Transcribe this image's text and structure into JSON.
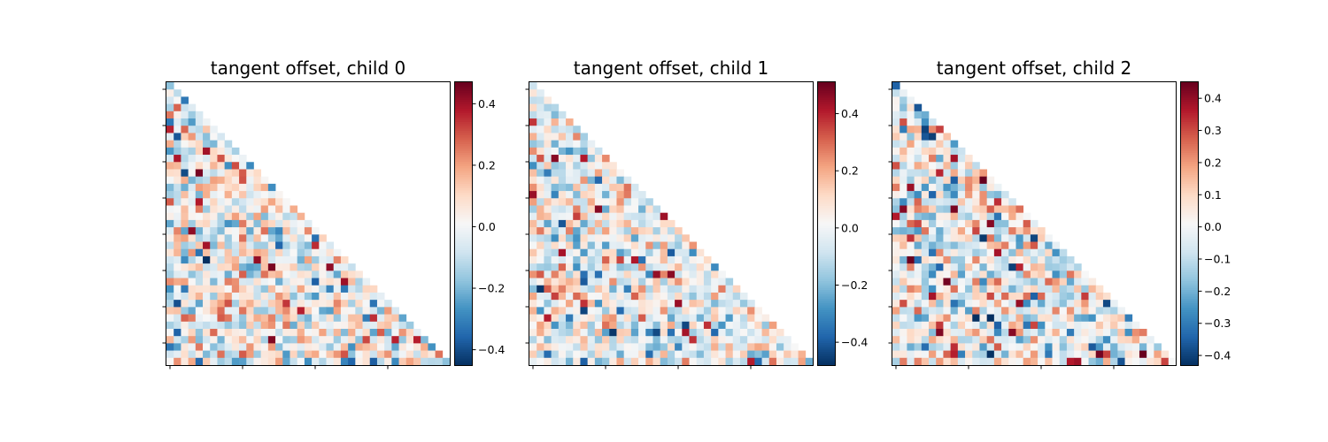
{
  "colormap": {
    "name": "RdBu_r",
    "stops": [
      "#053061",
      "#2166ac",
      "#4393c3",
      "#92c5de",
      "#d1e5f0",
      "#f7f7f7",
      "#fddbc7",
      "#f4a582",
      "#d6604d",
      "#b2182b",
      "#67001f"
    ]
  },
  "chart_data": [
    {
      "type": "heatmap",
      "title": "tangent offset, child 0",
      "matrix": "lower-triangular",
      "rows": 39,
      "cols": 39,
      "vmin": -0.45,
      "vmax": 0.47,
      "colorbar_ticks": [
        0.4,
        0.2,
        0.0,
        -0.2,
        -0.4
      ],
      "colorbar_tick_labels": [
        "0.4",
        "0.2",
        "0.0",
        "−0.2",
        "−0.4"
      ],
      "seed": 11
    },
    {
      "type": "heatmap",
      "title": "tangent offset, child 1",
      "matrix": "lower-triangular",
      "rows": 39,
      "cols": 39,
      "vmin": -0.48,
      "vmax": 0.51,
      "colorbar_ticks": [
        0.4,
        0.2,
        0.0,
        -0.2,
        -0.4
      ],
      "colorbar_tick_labels": [
        "0.4",
        "0.2",
        "0.0",
        "−0.2",
        "−0.4"
      ],
      "seed": 23
    },
    {
      "type": "heatmap",
      "title": "tangent offset, child 2",
      "matrix": "lower-triangular",
      "rows": 39,
      "cols": 39,
      "vmin": -0.43,
      "vmax": 0.45,
      "colorbar_ticks": [
        0.4,
        0.3,
        0.2,
        0.1,
        0.0,
        -0.1,
        -0.2,
        -0.3,
        -0.4
      ],
      "colorbar_tick_labels": [
        "0.4",
        "0.3",
        "0.2",
        "0.1",
        "0.0",
        "−0.1",
        "−0.2",
        "−0.3",
        "−0.4"
      ],
      "seed": 37
    }
  ]
}
